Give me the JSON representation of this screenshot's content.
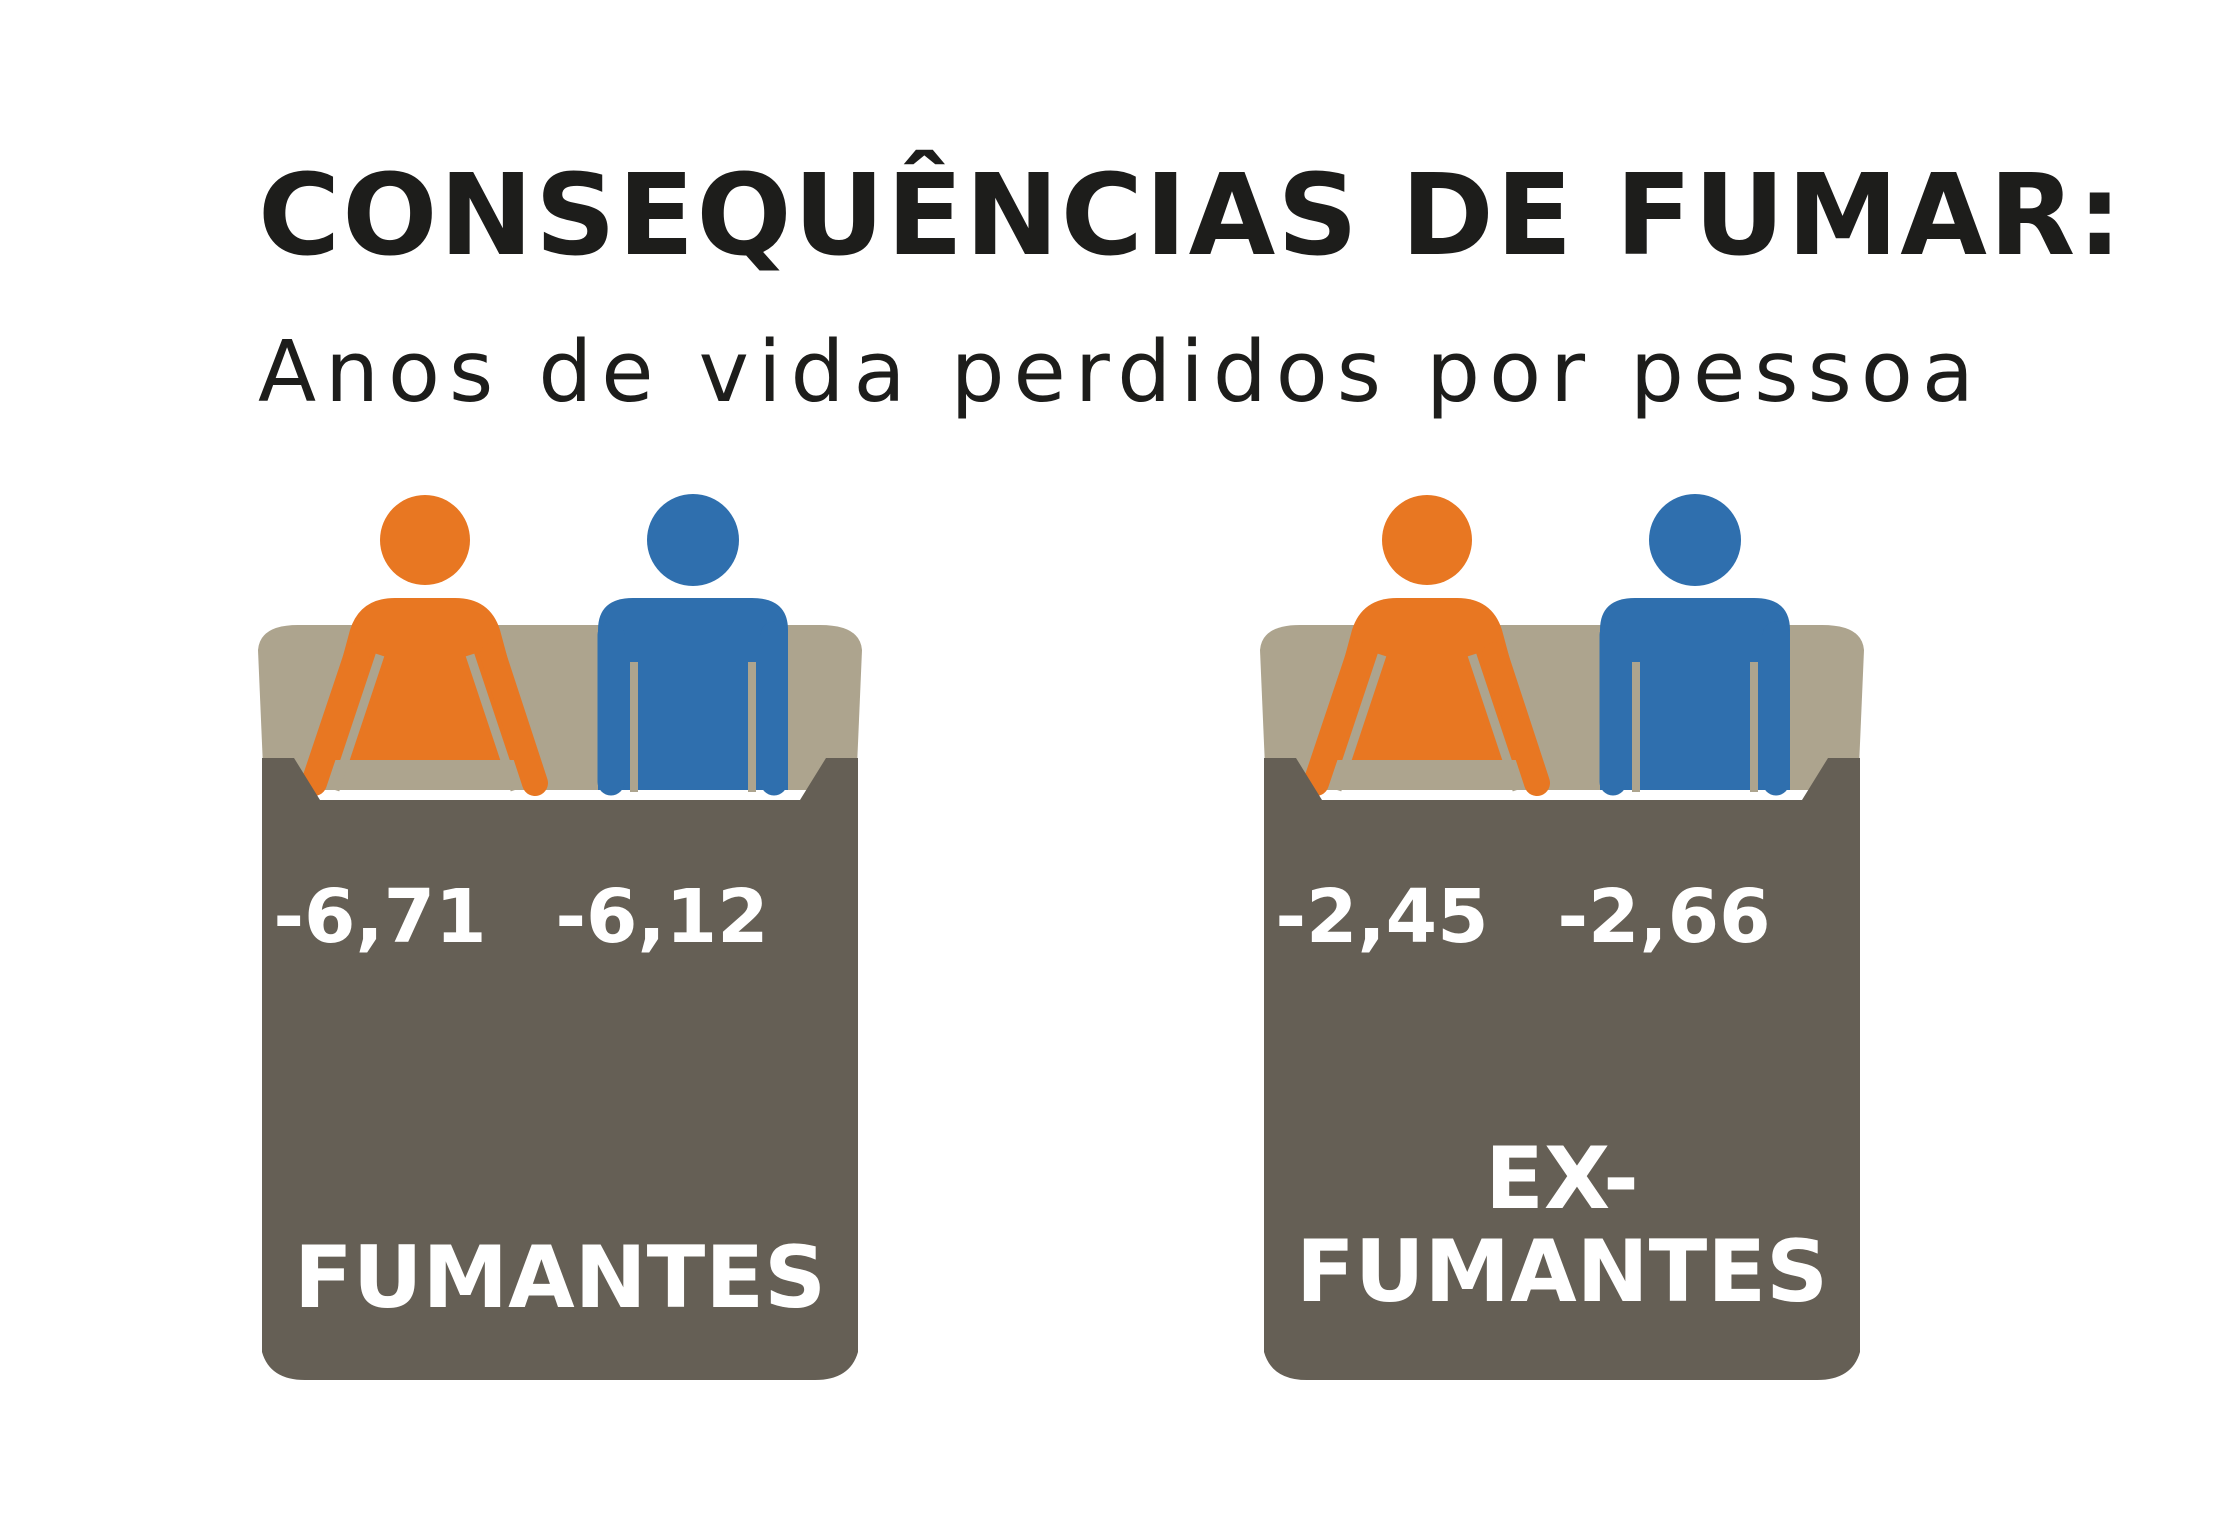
{
  "title": "CONSEQUÊNCIAS DE FUMAR:",
  "subtitle": "Anos de vida perdidos por pessoa",
  "colors": {
    "woman": "#e87722",
    "man": "#2f6fae",
    "blanket": "#655f55",
    "pillow": "#ada48e",
    "text_dark": "#1d1d1b"
  },
  "icons": [
    "woman-icon",
    "man-icon",
    "bed-icon"
  ],
  "groups": [
    {
      "label": "FUMANTES",
      "woman_value": "-6,71",
      "man_value": "-6,12"
    },
    {
      "label": "EX-\nFUMANTES",
      "woman_value": "-2,45",
      "man_value": "-2,66"
    }
  ]
}
